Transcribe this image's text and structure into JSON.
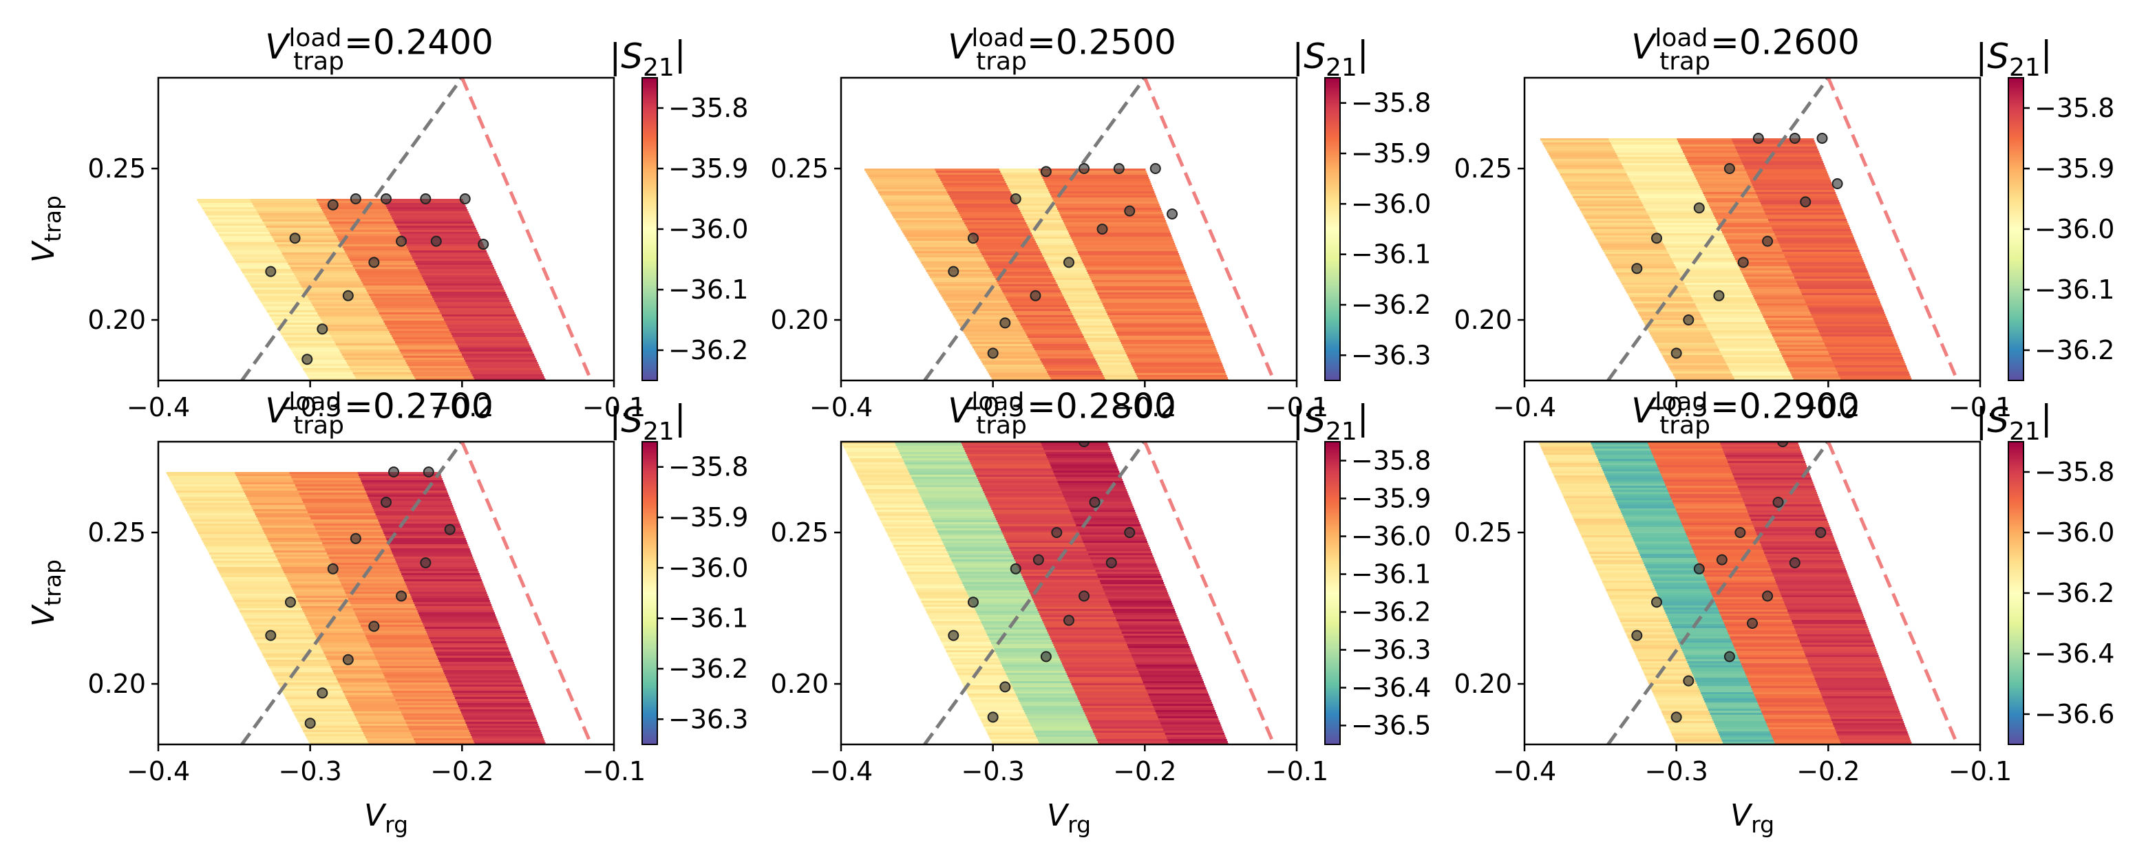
{
  "figure": {
    "colormap": [
      "#5e4fa2",
      "#3288bd",
      "#66c2a5",
      "#abdda4",
      "#e6f598",
      "#ffffbf",
      "#fee08b",
      "#fdae61",
      "#f46d43",
      "#d53e4f",
      "#9e0142"
    ],
    "guide_line_colors": {
      "gray": "#7a7a7a",
      "red": "#f08080"
    },
    "marker_color": "#3c3c3c"
  },
  "chart_data": [
    {
      "type": "heatmap",
      "title": "=0.2400",
      "title_var": {
        "base": "V",
        "sup": "load",
        "sub": "trap"
      },
      "xlabel": {
        "base": "V",
        "sub": "rg"
      },
      "ylabel": {
        "base": "V",
        "sub": "trap"
      },
      "xlim": [
        -0.4,
        -0.1
      ],
      "ylim": [
        0.18,
        0.28
      ],
      "xticks": [
        -0.4,
        -0.3,
        -0.2,
        -0.1
      ],
      "xtick_labels": [
        "−0.4",
        "−0.3",
        "−0.2",
        "−0.1"
      ],
      "yticks": [
        0.2,
        0.25
      ],
      "ytick_labels": [
        "0.20",
        "0.25"
      ],
      "vtrap_load": 0.24,
      "colorbar": {
        "label": "|S21|",
        "range": [
          -36.25,
          -35.75
        ],
        "ticks": [
          -35.8,
          -35.9,
          -36.0,
          -36.1,
          -36.2
        ],
        "tick_labels": [
          "−35.8",
          "−35.9",
          "−36.0",
          "−36.1",
          "−36.2"
        ]
      },
      "region_x_at_vtrap_min": [
        -0.3,
        -0.145
      ],
      "region_x_at_vtrap_max": [
        -0.375,
        -0.2
      ],
      "regions": [
        {
          "u0": 0.0,
          "u1": 0.2,
          "value": -35.97
        },
        {
          "u0": 0.2,
          "u1": 0.45,
          "value": -35.93
        },
        {
          "u0": 0.45,
          "u1": 0.7,
          "value": -35.87
        },
        {
          "u0": 0.7,
          "u1": 1.0,
          "value": -35.8
        }
      ],
      "points": [
        [
          -0.326,
          0.216
        ],
        [
          -0.31,
          0.227
        ],
        [
          -0.302,
          0.187
        ],
        [
          -0.292,
          0.197
        ],
        [
          -0.285,
          0.238
        ],
        [
          -0.275,
          0.208
        ],
        [
          -0.27,
          0.24
        ],
        [
          -0.258,
          0.219
        ],
        [
          -0.25,
          0.24
        ],
        [
          -0.24,
          0.226
        ],
        [
          -0.224,
          0.24
        ],
        [
          -0.217,
          0.226
        ],
        [
          -0.198,
          0.24
        ],
        [
          -0.186,
          0.225
        ]
      ],
      "guide_lines": [
        {
          "color": "gray",
          "points": [
            [
              -0.345,
              0.18
            ],
            [
              -0.2,
              0.28
            ]
          ]
        },
        {
          "color": "red",
          "points": [
            [
              -0.2,
              0.28
            ],
            [
              -0.115,
              0.18
            ]
          ]
        }
      ]
    },
    {
      "type": "heatmap",
      "title": "=0.2500",
      "title_var": {
        "base": "V",
        "sup": "load",
        "sub": "trap"
      },
      "xlabel": {
        "base": "V",
        "sub": "rg"
      },
      "ylabel": {
        "base": "V",
        "sub": "trap"
      },
      "xlim": [
        -0.4,
        -0.1
      ],
      "ylim": [
        0.18,
        0.28
      ],
      "xticks": [
        -0.4,
        -0.3,
        -0.2,
        -0.1
      ],
      "xtick_labels": [
        "−0.4",
        "−0.3",
        "−0.2",
        "−0.1"
      ],
      "yticks": [
        0.2,
        0.25
      ],
      "ytick_labels": [
        "0.20",
        "0.25"
      ],
      "vtrap_load": 0.25,
      "colorbar": {
        "label": "|S21|",
        "range": [
          -36.35,
          -35.75
        ],
        "ticks": [
          -35.8,
          -35.9,
          -36.0,
          -36.1,
          -36.2,
          -36.3
        ],
        "tick_labels": [
          "−35.8",
          "−35.9",
          "−36.0",
          "−36.1",
          "−36.2",
          "−36.3"
        ]
      },
      "region_x_at_vtrap_min": [
        -0.3,
        -0.145
      ],
      "region_x_at_vtrap_max": [
        -0.385,
        -0.2
      ],
      "regions": [
        {
          "u0": 0.0,
          "u1": 0.25,
          "value": -35.95
        },
        {
          "u0": 0.25,
          "u1": 0.48,
          "value": -35.87
        },
        {
          "u0": 0.48,
          "u1": 0.62,
          "value": -36.0
        },
        {
          "u0": 0.62,
          "u1": 1.0,
          "value": -35.88
        }
      ],
      "points": [
        [
          -0.326,
          0.216
        ],
        [
          -0.313,
          0.227
        ],
        [
          -0.3,
          0.189
        ],
        [
          -0.292,
          0.199
        ],
        [
          -0.285,
          0.24
        ],
        [
          -0.272,
          0.208
        ],
        [
          -0.265,
          0.249
        ],
        [
          -0.25,
          0.219
        ],
        [
          -0.24,
          0.25
        ],
        [
          -0.228,
          0.23
        ],
        [
          -0.217,
          0.25
        ],
        [
          -0.21,
          0.236
        ],
        [
          -0.193,
          0.25
        ],
        [
          -0.182,
          0.235
        ]
      ],
      "guide_lines": [
        {
          "color": "gray",
          "points": [
            [
              -0.345,
              0.18
            ],
            [
              -0.2,
              0.28
            ]
          ]
        },
        {
          "color": "red",
          "points": [
            [
              -0.2,
              0.28
            ],
            [
              -0.115,
              0.18
            ]
          ]
        }
      ]
    },
    {
      "type": "heatmap",
      "title": "=0.2600",
      "title_var": {
        "base": "V",
        "sup": "load",
        "sub": "trap"
      },
      "xlabel": {
        "base": "V",
        "sub": "rg"
      },
      "ylabel": {
        "base": "V",
        "sub": "trap"
      },
      "xlim": [
        -0.4,
        -0.1
      ],
      "ylim": [
        0.18,
        0.28
      ],
      "xticks": [
        -0.4,
        -0.3,
        -0.2,
        -0.1
      ],
      "xtick_labels": [
        "−0.4",
        "−0.3",
        "−0.2",
        "−0.1"
      ],
      "yticks": [
        0.2,
        0.25
      ],
      "ytick_labels": [
        "0.20",
        "0.25"
      ],
      "vtrap_load": 0.26,
      "colorbar": {
        "label": "|S21|",
        "range": [
          -36.25,
          -35.75
        ],
        "ticks": [
          -35.8,
          -35.9,
          -36.0,
          -36.1,
          -36.2
        ],
        "tick_labels": [
          "−35.8",
          "−35.9",
          "−36.0",
          "−36.1",
          "−36.2"
        ]
      },
      "region_x_at_vtrap_min": [
        -0.3,
        -0.145
      ],
      "region_x_at_vtrap_max": [
        -0.39,
        -0.21
      ],
      "regions": [
        {
          "u0": 0.0,
          "u1": 0.25,
          "value": -35.93
        },
        {
          "u0": 0.25,
          "u1": 0.5,
          "value": -35.97
        },
        {
          "u0": 0.5,
          "u1": 0.7,
          "value": -35.87
        },
        {
          "u0": 0.7,
          "u1": 1.0,
          "value": -35.84
        }
      ],
      "points": [
        [
          -0.326,
          0.217
        ],
        [
          -0.313,
          0.227
        ],
        [
          -0.3,
          0.189
        ],
        [
          -0.292,
          0.2
        ],
        [
          -0.285,
          0.237
        ],
        [
          -0.272,
          0.208
        ],
        [
          -0.265,
          0.25
        ],
        [
          -0.256,
          0.219
        ],
        [
          -0.246,
          0.26
        ],
        [
          -0.24,
          0.226
        ],
        [
          -0.222,
          0.26
        ],
        [
          -0.215,
          0.239
        ],
        [
          -0.204,
          0.26
        ],
        [
          -0.194,
          0.245
        ]
      ],
      "guide_lines": [
        {
          "color": "gray",
          "points": [
            [
              -0.345,
              0.18
            ],
            [
              -0.2,
              0.28
            ]
          ]
        },
        {
          "color": "red",
          "points": [
            [
              -0.2,
              0.28
            ],
            [
              -0.115,
              0.18
            ]
          ]
        }
      ]
    },
    {
      "type": "heatmap",
      "title": "=0.2700",
      "title_var": {
        "base": "V",
        "sup": "load",
        "sub": "trap"
      },
      "xlabel": {
        "base": "V",
        "sub": "rg"
      },
      "ylabel": {
        "base": "V",
        "sub": "trap"
      },
      "xlim": [
        -0.4,
        -0.1
      ],
      "ylim": [
        0.18,
        0.28
      ],
      "xticks": [
        -0.4,
        -0.3,
        -0.2,
        -0.1
      ],
      "xtick_labels": [
        "−0.4",
        "−0.3",
        "−0.2",
        "−0.1"
      ],
      "yticks": [
        0.2,
        0.25
      ],
      "ytick_labels": [
        "0.20",
        "0.25"
      ],
      "vtrap_load": 0.27,
      "colorbar": {
        "label": "|S21|",
        "range": [
          -36.35,
          -35.75
        ],
        "ticks": [
          -35.8,
          -35.9,
          -36.0,
          -36.1,
          -36.2,
          -36.3
        ],
        "tick_labels": [
          "−35.8",
          "−35.9",
          "−36.0",
          "−36.1",
          "−36.2",
          "−36.3"
        ]
      },
      "region_x_at_vtrap_min": [
        -0.3,
        -0.145
      ],
      "region_x_at_vtrap_max": [
        -0.395,
        -0.215
      ],
      "regions": [
        {
          "u0": 0.0,
          "u1": 0.25,
          "value": -36.0
        },
        {
          "u0": 0.25,
          "u1": 0.45,
          "value": -35.93
        },
        {
          "u0": 0.45,
          "u1": 0.7,
          "value": -35.9
        },
        {
          "u0": 0.7,
          "u1": 1.0,
          "value": -35.8
        }
      ],
      "points": [
        [
          -0.326,
          0.216
        ],
        [
          -0.313,
          0.227
        ],
        [
          -0.3,
          0.187
        ],
        [
          -0.292,
          0.197
        ],
        [
          -0.285,
          0.238
        ],
        [
          -0.275,
          0.208
        ],
        [
          -0.27,
          0.248
        ],
        [
          -0.258,
          0.219
        ],
        [
          -0.25,
          0.26
        ],
        [
          -0.24,
          0.229
        ],
        [
          -0.245,
          0.27
        ],
        [
          -0.224,
          0.24
        ],
        [
          -0.222,
          0.27
        ],
        [
          -0.208,
          0.251
        ]
      ],
      "guide_lines": [
        {
          "color": "gray",
          "points": [
            [
              -0.345,
              0.18
            ],
            [
              -0.2,
              0.28
            ]
          ]
        },
        {
          "color": "red",
          "points": [
            [
              -0.2,
              0.28
            ],
            [
              -0.115,
              0.18
            ]
          ]
        }
      ]
    },
    {
      "type": "heatmap",
      "title": "=0.2800",
      "title_var": {
        "base": "V",
        "sup": "load",
        "sub": "trap"
      },
      "xlabel": {
        "base": "V",
        "sub": "rg"
      },
      "ylabel": {
        "base": "V",
        "sub": "trap"
      },
      "xlim": [
        -0.4,
        -0.1
      ],
      "ylim": [
        0.18,
        0.28
      ],
      "xticks": [
        -0.4,
        -0.3,
        -0.2,
        -0.1
      ],
      "xtick_labels": [
        "−0.4",
        "−0.3",
        "−0.2",
        "−0.1"
      ],
      "yticks": [
        0.2,
        0.25
      ],
      "ytick_labels": [
        "0.20",
        "0.25"
      ],
      "vtrap_load": 0.28,
      "colorbar": {
        "label": "|S21|",
        "range": [
          -36.55,
          -35.75
        ],
        "ticks": [
          -35.8,
          -35.9,
          -36.0,
          -36.1,
          -36.2,
          -36.3,
          -36.4,
          -36.5
        ],
        "tick_labels": [
          "−35.8",
          "−35.9",
          "−36.0",
          "−36.1",
          "−36.2",
          "−36.3",
          "−36.4",
          "−36.5"
        ]
      },
      "region_x_at_vtrap_min": [
        -0.3,
        -0.145
      ],
      "region_x_at_vtrap_max": [
        -0.4,
        -0.225
      ],
      "regions": [
        {
          "u0": 0.0,
          "u1": 0.2,
          "value": -36.1
        },
        {
          "u0": 0.2,
          "u1": 0.45,
          "value": -36.3
        },
        {
          "u0": 0.45,
          "u1": 0.75,
          "value": -35.85
        },
        {
          "u0": 0.75,
          "u1": 1.0,
          "value": -35.8
        }
      ],
      "points": [
        [
          -0.326,
          0.216
        ],
        [
          -0.313,
          0.227
        ],
        [
          -0.3,
          0.189
        ],
        [
          -0.292,
          0.199
        ],
        [
          -0.285,
          0.238
        ],
        [
          -0.27,
          0.241
        ],
        [
          -0.265,
          0.209
        ],
        [
          -0.258,
          0.25
        ],
        [
          -0.25,
          0.221
        ],
        [
          -0.24,
          0.229
        ],
        [
          -0.233,
          0.26
        ],
        [
          -0.222,
          0.24
        ],
        [
          -0.21,
          0.25
        ],
        [
          -0.24,
          0.28
        ]
      ],
      "guide_lines": [
        {
          "color": "gray",
          "points": [
            [
              -0.345,
              0.18
            ],
            [
              -0.2,
              0.28
            ]
          ]
        },
        {
          "color": "red",
          "points": [
            [
              -0.2,
              0.28
            ],
            [
              -0.115,
              0.18
            ]
          ]
        }
      ]
    },
    {
      "type": "heatmap",
      "title": "=0.2900",
      "title_var": {
        "base": "V",
        "sup": "load",
        "sub": "trap"
      },
      "xlabel": {
        "base": "V",
        "sub": "rg"
      },
      "ylabel": {
        "base": "V",
        "sub": "trap"
      },
      "xlim": [
        -0.4,
        -0.1
      ],
      "ylim": [
        0.18,
        0.28
      ],
      "xticks": [
        -0.4,
        -0.3,
        -0.2,
        -0.1
      ],
      "xtick_labels": [
        "−0.4",
        "−0.3",
        "−0.2",
        "−0.1"
      ],
      "yticks": [
        0.2,
        0.25
      ],
      "ytick_labels": [
        "0.20",
        "0.25"
      ],
      "vtrap_load": 0.29,
      "colorbar": {
        "label": "|S21|",
        "range": [
          -36.7,
          -35.7
        ],
        "ticks": [
          -35.8,
          -36.0,
          -36.2,
          -36.4,
          -36.6
        ],
        "tick_labels": [
          "−35.8",
          "−36.0",
          "−36.2",
          "−36.4",
          "−36.6"
        ]
      },
      "region_x_at_vtrap_min": [
        -0.3,
        -0.145
      ],
      "region_x_at_vtrap_max": [
        -0.4,
        -0.228
      ],
      "regions": [
        {
          "u0": 0.0,
          "u1": 0.2,
          "value": -36.1
        },
        {
          "u0": 0.2,
          "u1": 0.42,
          "value": -36.5
        },
        {
          "u0": 0.42,
          "u1": 0.7,
          "value": -35.9
        },
        {
          "u0": 0.7,
          "u1": 1.0,
          "value": -35.8
        }
      ],
      "points": [
        [
          -0.326,
          0.216
        ],
        [
          -0.313,
          0.227
        ],
        [
          -0.3,
          0.189
        ],
        [
          -0.292,
          0.201
        ],
        [
          -0.285,
          0.238
        ],
        [
          -0.27,
          0.241
        ],
        [
          -0.265,
          0.209
        ],
        [
          -0.258,
          0.25
        ],
        [
          -0.25,
          0.22
        ],
        [
          -0.24,
          0.229
        ],
        [
          -0.233,
          0.26
        ],
        [
          -0.222,
          0.24
        ],
        [
          -0.205,
          0.25
        ],
        [
          -0.23,
          0.28
        ]
      ],
      "guide_lines": [
        {
          "color": "gray",
          "points": [
            [
              -0.345,
              0.18
            ],
            [
              -0.2,
              0.28
            ]
          ]
        },
        {
          "color": "red",
          "points": [
            [
              -0.2,
              0.28
            ],
            [
              -0.115,
              0.18
            ]
          ]
        }
      ]
    }
  ]
}
